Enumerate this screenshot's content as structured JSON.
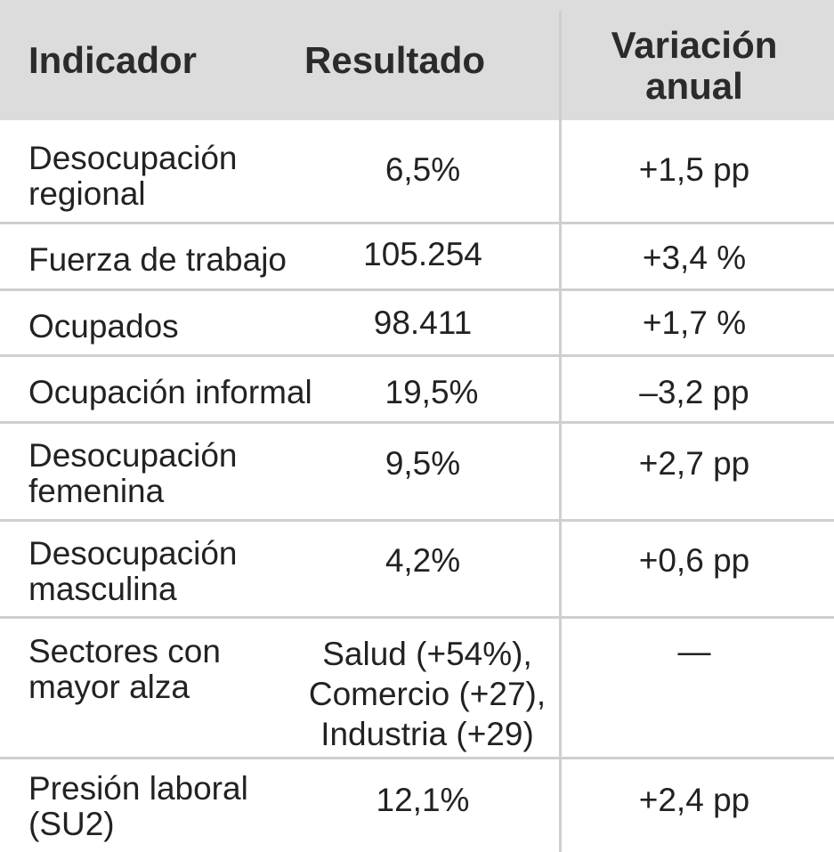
{
  "headers": {
    "indicador": "Indicador",
    "resultado": "Resultado",
    "variacion": "Variación anual"
  },
  "rows": [
    {
      "indicador": "Desocupación regional",
      "resultado": "6,5%",
      "variacion": "+1,5 pp"
    },
    {
      "indicador": "Fuerza de trabajo",
      "resultado": "105.254",
      "variacion": "+3,4 %"
    },
    {
      "indicador": "Ocupados",
      "resultado": "98.411",
      "variacion": "+1,7 %"
    },
    {
      "indicador": "Ocupación informal",
      "resultado": "19,5%",
      "variacion": "–3,2 pp"
    },
    {
      "indicador": "Desocupación femenina",
      "resultado": "9,5%",
      "variacion": "+2,7 pp"
    },
    {
      "indicador": "Desocupación masculina",
      "resultado": "4,2%",
      "variacion": "+0,6 pp"
    },
    {
      "indicador": "Sectores con mayor alza",
      "resultado": "Salud (+54%), Comercio (+27), Industria (+29)",
      "variacion": "—"
    },
    {
      "indicador": "Presión laboral (SU2)",
      "resultado": "12,1%",
      "variacion": "+2,4 pp"
    }
  ]
}
